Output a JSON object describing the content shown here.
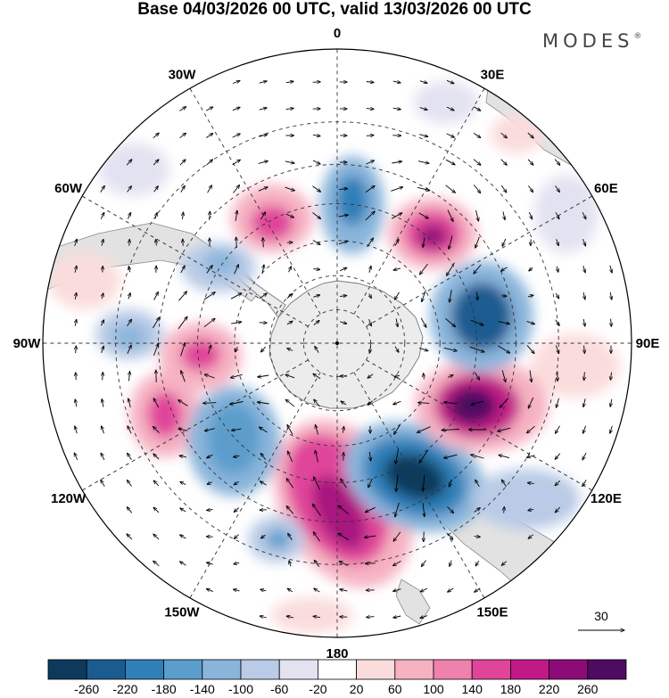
{
  "title": "Base 04/03/2026 00 UTC, valid 13/03/2026 00 UTC",
  "brand": {
    "name": "MODES",
    "mark": "®"
  },
  "longitude_labels": [
    {
      "lon": 0,
      "text": "0"
    },
    {
      "lon": 30,
      "text": "30E"
    },
    {
      "lon": 60,
      "text": "60E"
    },
    {
      "lon": 90,
      "text": "90E"
    },
    {
      "lon": 120,
      "text": "120E"
    },
    {
      "lon": 150,
      "text": "150E"
    },
    {
      "lon": 180,
      "text": "180"
    },
    {
      "lon": -150,
      "text": "150W"
    },
    {
      "lon": -120,
      "text": "120W"
    },
    {
      "lon": -90,
      "text": "90W"
    },
    {
      "lon": -60,
      "text": "60W"
    },
    {
      "lon": -30,
      "text": "30W"
    }
  ],
  "latitude_circles": [
    -80,
    -70,
    -60,
    -50,
    -40,
    -30
  ],
  "reference_vector": {
    "value": "30"
  },
  "colorbar": {
    "ticks": [
      "-260",
      "-220",
      "-180",
      "-140",
      "-100",
      "-60",
      "-20",
      "20",
      "60",
      "100",
      "140",
      "180",
      "220",
      "260"
    ],
    "colors": [
      "#0d3a5c",
      "#1b5c90",
      "#2f7fb8",
      "#5b9dcc",
      "#8ab5db",
      "#b9cbe6",
      "#e3e2f1",
      "#ffffff",
      "#fbdcdc",
      "#f6b2c2",
      "#ef82ad",
      "#e0459a",
      "#c11a86",
      "#8d0b78",
      "#4e0b62"
    ]
  },
  "map_data": {
    "projection": "south-polar-stereographic",
    "field": "anomaly with wind vectors",
    "features": [
      {
        "name": "antarctica",
        "type": "land"
      },
      {
        "name": "south-america",
        "type": "land"
      },
      {
        "name": "australia",
        "type": "land"
      },
      {
        "name": "new-zealand",
        "type": "land"
      },
      {
        "name": "southern-africa",
        "type": "land"
      }
    ],
    "anomalies": [
      {
        "lon": 0,
        "lat": -52,
        "value": -120
      },
      {
        "lon": 35,
        "lat": -52,
        "value": 240
      },
      {
        "lon": -25,
        "lat": -52,
        "value": 170
      },
      {
        "lon": -55,
        "lat": -52,
        "value": -110
      },
      {
        "lon": 75,
        "lat": -50,
        "value": -210
      },
      {
        "lon": 105,
        "lat": -50,
        "value": 260
      },
      {
        "lon": 140,
        "lat": -42,
        "value": -270
      },
      {
        "lon": 170,
        "lat": -48,
        "value": 230
      },
      {
        "lon": -165,
        "lat": -40,
        "value": -140
      },
      {
        "lon": -130,
        "lat": -55,
        "value": -170
      },
      {
        "lon": -105,
        "lat": -52,
        "value": 160
      },
      {
        "lon": -85,
        "lat": -55,
        "value": 150
      },
      {
        "lon": -80,
        "lat": -40,
        "value": -100
      }
    ]
  }
}
